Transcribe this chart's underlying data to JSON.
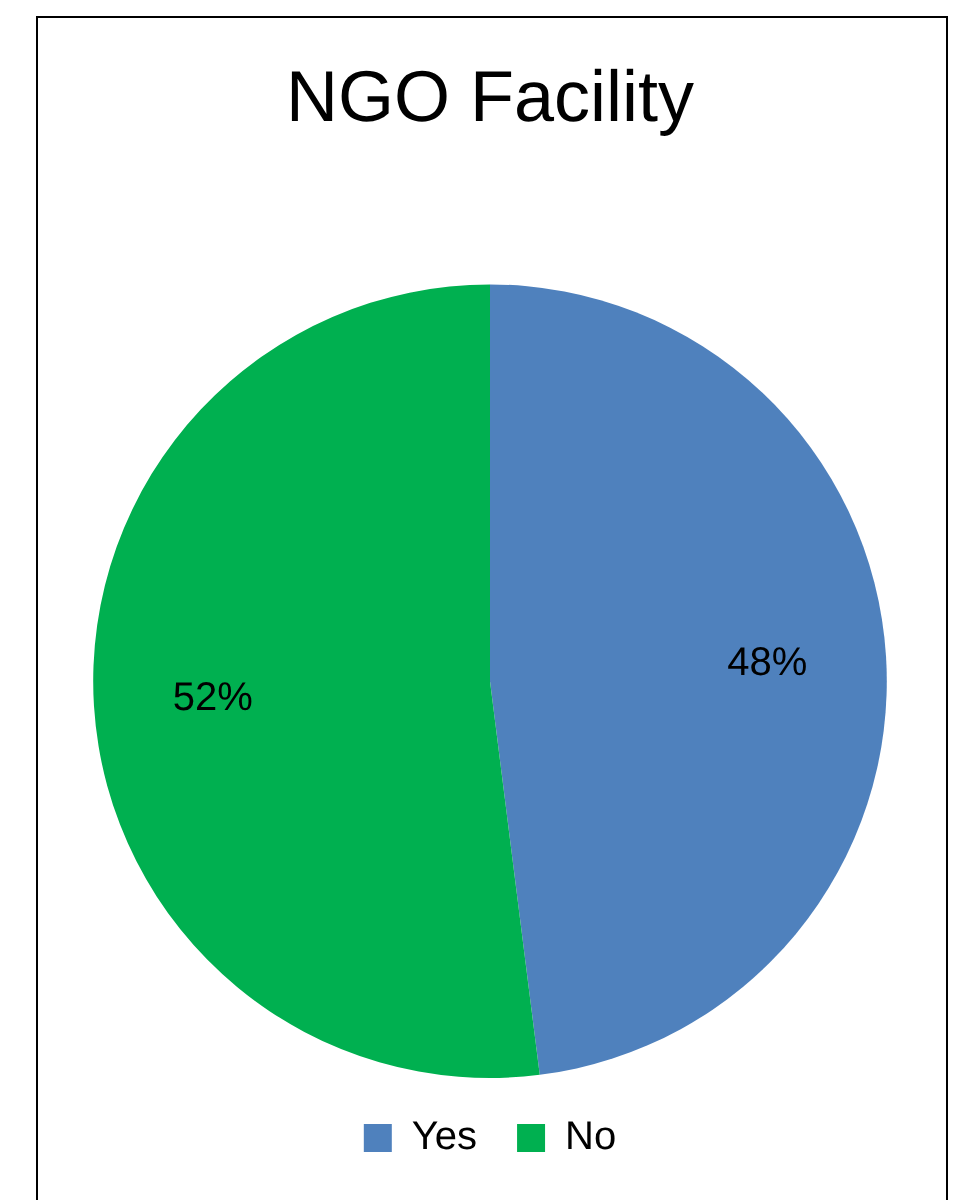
{
  "chart_data": {
    "type": "pie",
    "title": "NGO Facility",
    "categories": [
      "Yes",
      "No"
    ],
    "values": [
      48,
      52
    ],
    "colors": [
      "#4f81bd",
      "#00b050"
    ],
    "value_labels": [
      "48%",
      "52%"
    ],
    "legend": "bottom"
  }
}
